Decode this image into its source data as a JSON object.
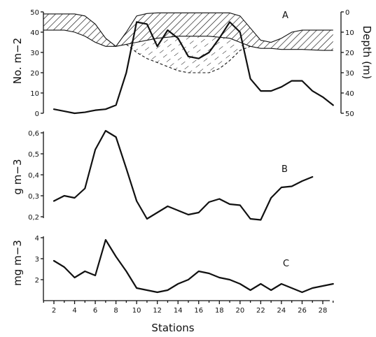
{
  "figure": {
    "x_axis_title": "Stations",
    "x_ticks": [
      2,
      4,
      6,
      8,
      10,
      12,
      14,
      16,
      18,
      20,
      22,
      24,
      26,
      28
    ]
  },
  "chart_data": [
    {
      "type": "line",
      "panel_label": "A",
      "ylabel": "No. m−2",
      "ylim": [
        0,
        50
      ],
      "yticks": [
        0,
        10,
        20,
        30,
        40,
        50
      ],
      "y2label": "Depth (m)",
      "y2lim": [
        0,
        50
      ],
      "y2ticks": [
        0,
        10,
        20,
        30,
        40,
        50
      ],
      "y2_inverted": true,
      "x": [
        2,
        3,
        4,
        5,
        6,
        7,
        8,
        9,
        10,
        11,
        12,
        13,
        14,
        15,
        16,
        17,
        18,
        19,
        20,
        21,
        22,
        23,
        24,
        25,
        26,
        27,
        28,
        29
      ],
      "series": [
        {
          "values": [
            2,
            1,
            0,
            0.5,
            1.5,
            2,
            4,
            20,
            45,
            44,
            33,
            41,
            37,
            28,
            27,
            30,
            37,
            45,
            40,
            17,
            11,
            11,
            13,
            16,
            16,
            11,
            8,
            4
          ]
        }
      ],
      "depth_bands": [
        {
          "fill": "diagonal-hatch",
          "upper": [
            [
              1,
              1
            ],
            [
              2,
              1
            ],
            [
              3,
              1
            ],
            [
              4,
              1
            ],
            [
              5,
              2
            ],
            [
              6,
              6
            ],
            [
              7,
              13
            ],
            [
              8,
              17
            ],
            [
              9,
              10
            ],
            [
              10,
              2
            ],
            [
              11,
              0.8
            ],
            [
              12,
              0.5
            ],
            [
              14,
              0.5
            ],
            [
              17,
              0.5
            ],
            [
              19,
              0.5
            ],
            [
              20,
              2
            ],
            [
              21,
              8
            ],
            [
              22,
              14
            ],
            [
              23,
              15
            ],
            [
              24,
              13
            ],
            [
              25,
              10
            ],
            [
              26,
              9
            ],
            [
              28,
              9
            ],
            [
              29,
              9
            ]
          ],
          "lower": [
            [
              1,
              9
            ],
            [
              2,
              9
            ],
            [
              3,
              9
            ],
            [
              4,
              10
            ],
            [
              5,
              12
            ],
            [
              6,
              15
            ],
            [
              7,
              17
            ],
            [
              8,
              17
            ],
            [
              9,
              16
            ],
            [
              10,
              15
            ],
            [
              11,
              14
            ],
            [
              12,
              13
            ],
            [
              14,
              12
            ],
            [
              17,
              12
            ],
            [
              19,
              13
            ],
            [
              20,
              15
            ],
            [
              21,
              17
            ],
            [
              22,
              18
            ],
            [
              23,
              18
            ],
            [
              24,
              18.5
            ],
            [
              26,
              18.5
            ],
            [
              28,
              19
            ],
            [
              29,
              19
            ]
          ]
        },
        {
          "fill": "dashed-hatch",
          "upper": [
            [
              9,
              16
            ],
            [
              10,
              15
            ],
            [
              11,
              14
            ],
            [
              12,
              13
            ],
            [
              14,
              12
            ],
            [
              17,
              12
            ],
            [
              19,
              13
            ],
            [
              20,
              15
            ],
            [
              21,
              17
            ]
          ],
          "lower": [
            [
              9,
              16
            ],
            [
              10,
              20
            ],
            [
              11,
              23
            ],
            [
              12,
              25
            ],
            [
              13,
              27
            ],
            [
              14,
              29
            ],
            [
              15,
              30
            ],
            [
              16,
              30
            ],
            [
              17,
              30
            ],
            [
              18,
              28
            ],
            [
              19,
              24
            ],
            [
              20,
              19
            ],
            [
              21,
              17
            ]
          ]
        }
      ]
    },
    {
      "type": "line",
      "panel_label": "B",
      "ylabel": "g m−3",
      "ylim": [
        0.2,
        0.6
      ],
      "yticks": [
        0.2,
        0.3,
        0.4,
        0.5,
        0.6
      ],
      "ytick_labels": [
        "0,2",
        "0,3",
        "0,4",
        "0,5",
        "0,6"
      ],
      "x": [
        2,
        3,
        4,
        5,
        6,
        7,
        8,
        9,
        10,
        11,
        12,
        13,
        14,
        15,
        16,
        17,
        18,
        19,
        20,
        21,
        22,
        23,
        24,
        25,
        26,
        27
      ],
      "series": [
        {
          "values": [
            0.275,
            0.3,
            0.29,
            0.335,
            0.52,
            0.61,
            0.58,
            0.43,
            0.275,
            0.19,
            0.22,
            0.25,
            0.23,
            0.21,
            0.22,
            0.27,
            0.285,
            0.26,
            0.255,
            0.19,
            0.185,
            0.29,
            0.34,
            0.345,
            0.37,
            0.39
          ]
        }
      ]
    },
    {
      "type": "line",
      "panel_label": "C",
      "ylabel": "mg m−3",
      "ylim": [
        1,
        4
      ],
      "yticks": [
        2,
        3,
        4
      ],
      "x": [
        2,
        3,
        4,
        5,
        6,
        7,
        8,
        9,
        10,
        11,
        12,
        13,
        14,
        15,
        16,
        17,
        18,
        19,
        20,
        21,
        22,
        23,
        24,
        25,
        26,
        27,
        28,
        29
      ],
      "series": [
        {
          "values": [
            2.9,
            2.6,
            2.1,
            2.4,
            2.2,
            3.9,
            3.1,
            2.4,
            1.6,
            1.5,
            1.4,
            1.5,
            1.8,
            2.0,
            2.4,
            2.3,
            2.1,
            2.0,
            1.8,
            1.5,
            1.8,
            1.5,
            1.8,
            1.6,
            1.4,
            1.6,
            1.7,
            1.8
          ]
        }
      ]
    }
  ]
}
